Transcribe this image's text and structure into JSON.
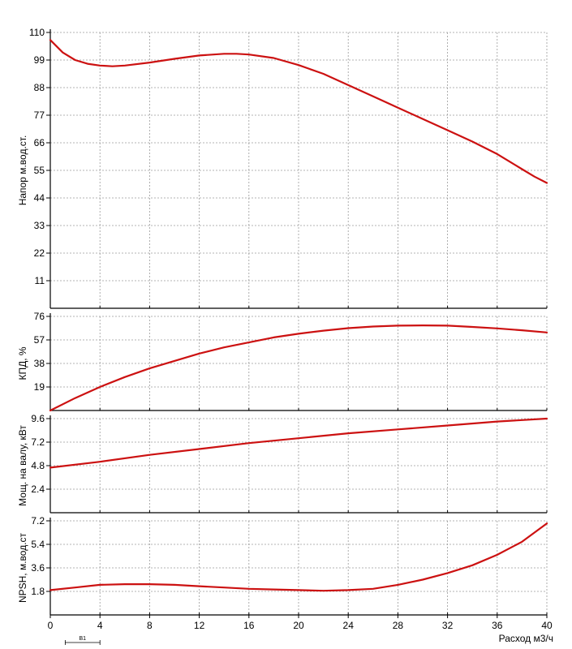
{
  "chart_data": {
    "type": "line",
    "x_axis": {
      "label": "Расход м3/ч",
      "lim": [
        0,
        40
      ],
      "ticks": [
        0,
        4,
        8,
        12,
        16,
        20,
        24,
        28,
        32,
        36,
        40
      ]
    },
    "grid": true,
    "line_color": "#cc1111",
    "annotation": {
      "label": "B1",
      "x_range": [
        1.2,
        4
      ]
    },
    "panels": [
      {
        "id": "head",
        "ylabel": "Напор м.вод.ст.",
        "ylim": [
          0,
          110
        ],
        "yticks": [
          11,
          22,
          33,
          44,
          55,
          66,
          77,
          88,
          99,
          110
        ],
        "series": [
          {
            "x": [
              0,
              1,
              2,
              3,
              4,
              5,
              6,
              8,
              10,
              12,
              14,
              15,
              16,
              18,
              20,
              22,
              24,
              26,
              28,
              30,
              32,
              34,
              36,
              37,
              38,
              39,
              40
            ],
            "y": [
              107,
              102,
              99,
              97.5,
              96.8,
              96.5,
              96.8,
              98,
              99.5,
              100.8,
              101.5,
              101.5,
              101.2,
              99.8,
              97,
              93.5,
              89,
              84.5,
              80,
              75.5,
              71,
              66.5,
              61.5,
              58.5,
              55.5,
              52.5,
              50
            ]
          }
        ]
      },
      {
        "id": "efficiency",
        "ylabel": "КПД, %",
        "ylim": [
          0,
          76
        ],
        "yticks": [
          19,
          38,
          57,
          76
        ],
        "series": [
          {
            "x": [
              0,
              2,
              4,
              6,
              8,
              10,
              12,
              14,
              16,
              18,
              20,
              22,
              24,
              26,
              28,
              30,
              32,
              34,
              36,
              38,
              40
            ],
            "y": [
              0,
              10,
              19,
              27,
              34,
              40,
              46,
              51,
              55,
              59,
              62,
              64.5,
              66.5,
              67.8,
              68.5,
              68.7,
              68.5,
              67.5,
              66.3,
              64.8,
              63
            ]
          }
        ]
      },
      {
        "id": "power",
        "ylabel": "Мощ. на валу, кВт",
        "ylim": [
          0,
          9.6
        ],
        "yticks": [
          2.4,
          4.8,
          7.2,
          9.6
        ],
        "series": [
          {
            "x": [
              0,
              4,
              8,
              12,
              16,
              20,
              24,
              28,
              32,
              36,
              40
            ],
            "y": [
              4.6,
              5.2,
              5.9,
              6.5,
              7.1,
              7.6,
              8.1,
              8.5,
              8.9,
              9.3,
              9.6
            ]
          }
        ]
      },
      {
        "id": "npsh",
        "ylabel": "NPSH, м.вод.ст",
        "ylim": [
          0,
          7.2
        ],
        "yticks": [
          1.8,
          3.6,
          5.4,
          7.2
        ],
        "series": [
          {
            "x": [
              0,
              2,
              4,
              6,
              8,
              10,
              12,
              14,
              16,
              18,
              20,
              22,
              24,
              26,
              28,
              30,
              32,
              34,
              36,
              38,
              40
            ],
            "y": [
              1.9,
              2.1,
              2.3,
              2.35,
              2.35,
              2.3,
              2.2,
              2.1,
              2.0,
              1.95,
              1.9,
              1.85,
              1.9,
              2.0,
              2.3,
              2.7,
              3.2,
              3.8,
              4.6,
              5.6,
              7.0
            ]
          }
        ]
      }
    ]
  }
}
